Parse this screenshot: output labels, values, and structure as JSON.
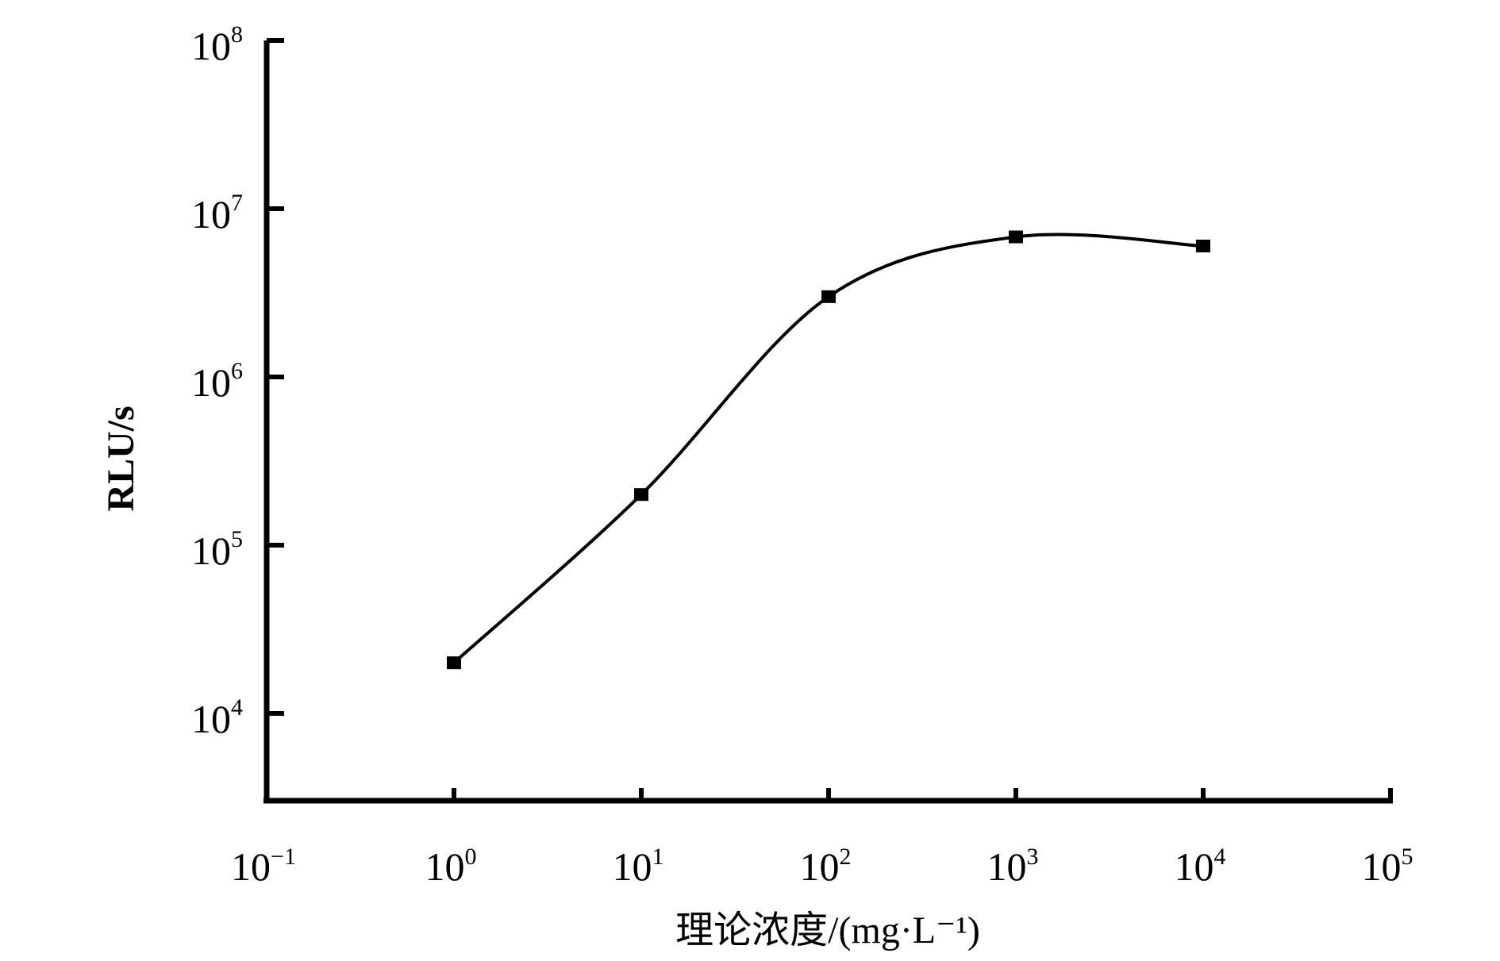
{
  "chart_data": {
    "type": "line",
    "title": "",
    "xlabel": "理论浓度/(mg·L⁻¹)",
    "ylabel": "RLU/s",
    "xscale": "log",
    "yscale": "log",
    "xlim": [
      0.1,
      100000
    ],
    "ylim": [
      3162,
      100000000
    ],
    "x_ticks": [
      {
        "exp": "−1"
      },
      {
        "exp": "0"
      },
      {
        "exp": "1"
      },
      {
        "exp": "2"
      },
      {
        "exp": "3"
      },
      {
        "exp": "4"
      },
      {
        "exp": "5"
      }
    ],
    "y_ticks": [
      {
        "exp": "4"
      },
      {
        "exp": "5"
      },
      {
        "exp": "6"
      },
      {
        "exp": "7"
      },
      {
        "exp": "8"
      }
    ],
    "tick_base": "10",
    "grid": false,
    "legend": "none",
    "series": [
      {
        "name": "RLU",
        "marker": "square",
        "smooth": true,
        "color": "#000000",
        "x": [
          1,
          10,
          100,
          1000,
          10000
        ],
        "y": [
          20000,
          200000,
          3000000,
          6800000,
          6000000
        ]
      }
    ]
  }
}
